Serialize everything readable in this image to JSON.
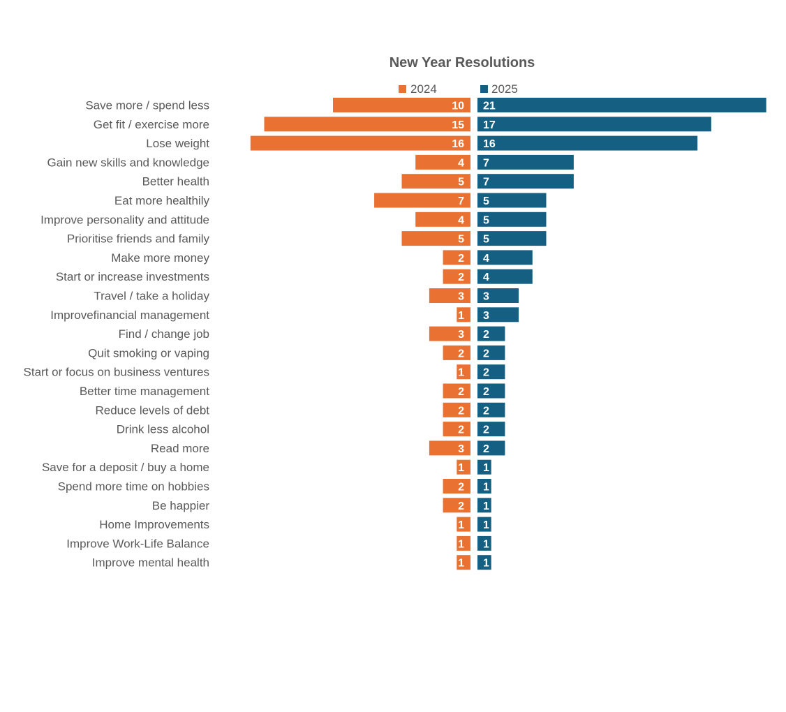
{
  "chart_data": {
    "type": "bar",
    "orientation": "horizontal-butterfly",
    "title": "New Year Resolutions",
    "legend_position": "top",
    "grid": false,
    "categories": [
      "Save more / spend less",
      "Get fit / exercise more",
      "Lose weight",
      "Gain new skills and knowledge",
      "Better health",
      "Eat more healthily",
      "Improve personality and attitude",
      "Prioritise friends and family",
      "Make more money",
      "Start or increase investments",
      "Travel / take a holiday",
      "Improvefinancial management",
      "Find / change job",
      "Quit smoking or vaping",
      "Start or focus on business ventures",
      "Better time management",
      "Reduce levels of debt",
      "Drink less alcohol",
      "Read more",
      "Save for a deposit / buy a home",
      "Spend more time on hobbies",
      "Be happier",
      "Home Improvements",
      "Improve Work-Life Balance",
      "Improve mental health"
    ],
    "series": [
      {
        "name": "2024",
        "color": "#E97132",
        "direction": "left",
        "values": [
          10,
          15,
          16,
          4,
          5,
          7,
          4,
          5,
          2,
          2,
          3,
          1,
          3,
          2,
          1,
          2,
          2,
          2,
          3,
          1,
          2,
          2,
          1,
          1,
          1
        ]
      },
      {
        "name": "2025",
        "color": "#156082",
        "direction": "right",
        "values": [
          21,
          17,
          16,
          7,
          7,
          5,
          5,
          5,
          4,
          4,
          3,
          3,
          2,
          2,
          2,
          2,
          2,
          2,
          2,
          1,
          1,
          1,
          1,
          1,
          1
        ]
      }
    ]
  }
}
